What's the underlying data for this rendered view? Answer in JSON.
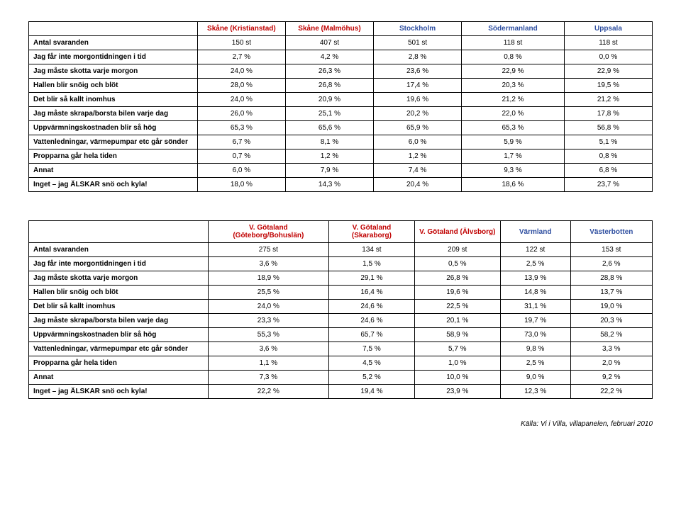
{
  "table1": {
    "headers": [
      {
        "label": "Skåne (Kristianstad)",
        "cls": "hdr-red"
      },
      {
        "label": "Skåne (Malmöhus)",
        "cls": "hdr-red"
      },
      {
        "label": "Stockholm",
        "cls": "hdr-blue"
      },
      {
        "label": "Södermanland",
        "cls": "hdr-blue"
      },
      {
        "label": "Uppsala",
        "cls": "hdr-blue"
      }
    ],
    "rows": [
      {
        "label": "Antal svaranden",
        "cells": [
          "150 st",
          "407 st",
          "501 st",
          "118 st",
          "118 st"
        ]
      },
      {
        "label": "Jag får inte morgontidningen i tid",
        "cells": [
          "2,7 %",
          "4,2 %",
          "2,8 %",
          "0,8 %",
          "0,0 %"
        ]
      },
      {
        "label": "Jag måste skotta varje morgon",
        "cells": [
          "24,0 %",
          "26,3 %",
          "23,6 %",
          "22,9 %",
          "22,9 %"
        ]
      },
      {
        "label": "Hallen blir snöig och blöt",
        "cells": [
          "28,0 %",
          "26,8 %",
          "17,4 %",
          "20,3 %",
          "19,5 %"
        ]
      },
      {
        "label": "Det blir så kallt inomhus",
        "cells": [
          "24,0 %",
          "20,9 %",
          "19,6 %",
          "21,2 %",
          "21,2 %"
        ]
      },
      {
        "label": "Jag måste skrapa/borsta bilen varje dag",
        "cells": [
          "26,0 %",
          "25,1 %",
          "20,2 %",
          "22,0 %",
          "17,8 %"
        ]
      },
      {
        "label": "Uppvärmningskostnaden blir så hög",
        "cells": [
          "65,3 %",
          "65,6 %",
          "65,9 %",
          "65,3 %",
          "56,8 %"
        ]
      },
      {
        "label": "Vattenledningar, värmepumpar etc går sönder",
        "cells": [
          "6,7 %",
          "8,1 %",
          "6,0 %",
          "5,9 %",
          "5,1 %"
        ]
      },
      {
        "label": "Propparna går hela tiden",
        "cells": [
          "0,7 %",
          "1,2 %",
          "1,2 %",
          "1,7 %",
          "0,8 %"
        ]
      },
      {
        "label": "Annat",
        "cells": [
          "6,0 %",
          "7,9 %",
          "7,4 %",
          "9,3 %",
          "6,8 %"
        ]
      },
      {
        "label": "Inget – jag ÄLSKAR snö och kyla!",
        "cells": [
          "18,0 %",
          "14,3 %",
          "20,4 %",
          "18,6 %",
          "23,7 %"
        ]
      }
    ]
  },
  "table2": {
    "headers": [
      {
        "label": "V. Götaland (Göteborg/Bohuslän)",
        "cls": "hdr-red"
      },
      {
        "label": "V. Götaland (Skaraborg)",
        "cls": "hdr-red"
      },
      {
        "label": "V. Götaland (Älvsborg)",
        "cls": "hdr-red"
      },
      {
        "label": "Värmland",
        "cls": "hdr-blue"
      },
      {
        "label": "Västerbotten",
        "cls": "hdr-blue"
      }
    ],
    "rows": [
      {
        "label": "Antal svaranden",
        "cells": [
          "275 st",
          "134 st",
          "209 st",
          "122 st",
          "153 st"
        ]
      },
      {
        "label": "Jag får inte morgontidningen i tid",
        "cells": [
          "3,6 %",
          "1,5 %",
          "0,5 %",
          "2,5 %",
          "2,6 %"
        ]
      },
      {
        "label": "Jag måste skotta varje morgon",
        "cells": [
          "18,9 %",
          "29,1 %",
          "26,8 %",
          "13,9 %",
          "28,8 %"
        ]
      },
      {
        "label": "Hallen blir snöig och blöt",
        "cells": [
          "25,5 %",
          "16,4 %",
          "19,6 %",
          "14,8 %",
          "13,7 %"
        ]
      },
      {
        "label": "Det blir så kallt inomhus",
        "cells": [
          "24,0 %",
          "24,6 %",
          "22,5 %",
          "31,1 %",
          "19,0 %"
        ]
      },
      {
        "label": "Jag måste skrapa/borsta bilen varje dag",
        "cells": [
          "23,3 %",
          "24,6 %",
          "20,1 %",
          "19,7 %",
          "20,3 %"
        ]
      },
      {
        "label": "Uppvärmningskostnaden blir så hög",
        "cells": [
          "55,3 %",
          "65,7 %",
          "58,9 %",
          "73,0 %",
          "58,2 %"
        ]
      },
      {
        "label": "Vattenledningar, värmepumpar etc går sönder",
        "cells": [
          "3,6 %",
          "7,5 %",
          "5,7 %",
          "9,8 %",
          "3,3 %"
        ]
      },
      {
        "label": "Propparna går hela tiden",
        "cells": [
          "1,1 %",
          "4,5 %",
          "1,0 %",
          "2,5 %",
          "2,0 %"
        ]
      },
      {
        "label": "Annat",
        "cells": [
          "7,3 %",
          "5,2 %",
          "10,0 %",
          "9,0 %",
          "9,2 %"
        ]
      },
      {
        "label": "Inget – jag ÄLSKAR snö och kyla!",
        "cells": [
          "22,2 %",
          "19,4 %",
          "23,9 %",
          "12,3 %",
          "22,2 %"
        ]
      }
    ]
  },
  "source": "Källa: Vi i Villa, villapanelen, februari 2010"
}
